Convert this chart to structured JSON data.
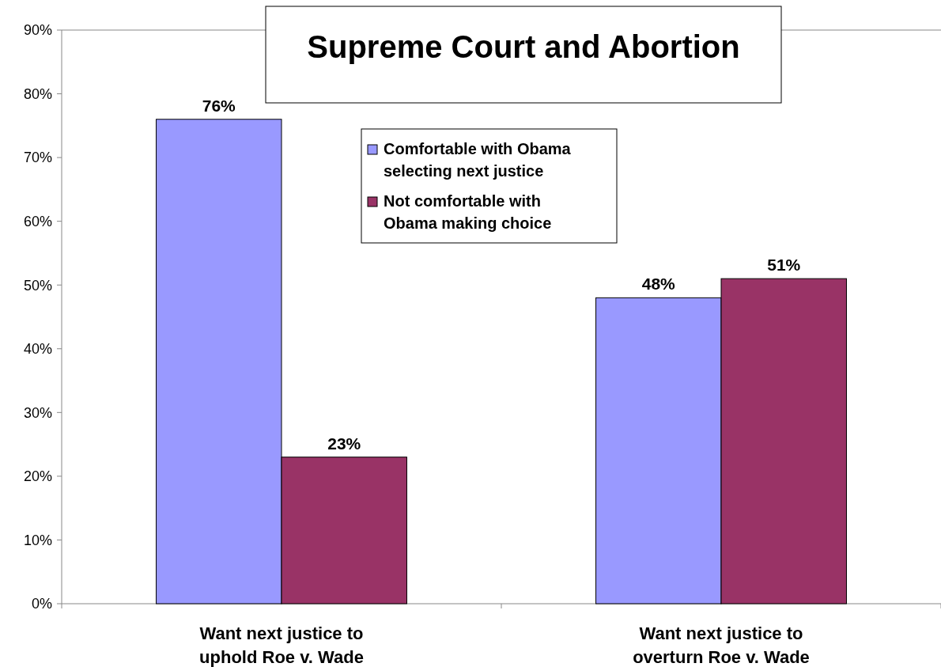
{
  "chart_data": {
    "type": "bar",
    "title": "Supreme Court and Abortion",
    "categories": [
      "Want next justice to uphold Roe v. Wade",
      "Want next justice to overturn Roe v. Wade"
    ],
    "series": [
      {
        "name": "Comfortable with Obama selecting next justice",
        "color": "#9999ff",
        "values": [
          76,
          48
        ]
      },
      {
        "name": "Not comfortable with Obama making choice",
        "color": "#993366",
        "values": [
          23,
          51
        ]
      }
    ],
    "ylim": [
      0,
      90
    ],
    "yticks": [
      {
        "value": 0,
        "label": "0%"
      },
      {
        "value": 10,
        "label": "10%"
      },
      {
        "value": 20,
        "label": "20%"
      },
      {
        "value": 30,
        "label": "30%"
      },
      {
        "value": 40,
        "label": "40%"
      },
      {
        "value": 50,
        "label": "50%"
      },
      {
        "value": 60,
        "label": "60%"
      },
      {
        "value": 70,
        "label": "70%"
      },
      {
        "value": 80,
        "label": "80%"
      },
      {
        "value": 90,
        "label": "90%"
      }
    ],
    "value_labels": [
      [
        "76%",
        "48%"
      ],
      [
        "23%",
        "51%"
      ]
    ],
    "legend": "top",
    "grid": false
  }
}
